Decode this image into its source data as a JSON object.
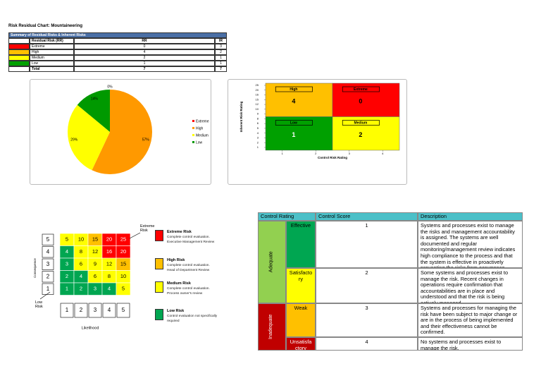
{
  "title": "Risk Residual Chart: Mountaineering",
  "summary_table": {
    "title": "Summary of Residual Risks & Inherent Risks",
    "columns": [
      "Residual Risk (RR)",
      "RR",
      "IR"
    ],
    "rows": [
      [
        "Extreme",
        0,
        3
      ],
      [
        "High",
        4,
        2
      ],
      [
        "Medium",
        2,
        1
      ],
      [
        "Low",
        1,
        1
      ],
      [
        "Total",
        7,
        7
      ]
    ],
    "colors": [
      "#ff0000",
      "#ffc000",
      "#ffff00",
      "#00a000"
    ]
  },
  "chart_data": [
    {
      "type": "pie",
      "categories": [
        "Extreme",
        "High",
        "Medium",
        "Low"
      ],
      "values": [
        0,
        57,
        29,
        14
      ],
      "value_labels": [
        "0%",
        "57%",
        "29%",
        "14%"
      ],
      "colors": [
        "#ff0000",
        "#ff9900",
        "#ffff00",
        "#009900"
      ],
      "legend": "right"
    },
    {
      "type": "quadrant",
      "xlabel": "Control Risk Rating",
      "ylabel": "Inherent Risk Rating",
      "xlim": [
        0.5,
        4.5
      ],
      "xticks": [
        1,
        2,
        3,
        4
      ],
      "yticks": [
        25,
        20,
        16,
        15,
        12,
        10,
        9,
        8,
        6,
        5,
        4,
        3,
        2,
        1
      ],
      "quadrants": [
        {
          "label": "High",
          "count": 4,
          "color": "#ffc000"
        },
        {
          "label": "Extreme",
          "count": 0,
          "color": "#ff0000"
        },
        {
          "label": "Low",
          "count": 1,
          "color": "#00a000"
        },
        {
          "label": "Medium",
          "count": 2,
          "color": "#ffff00"
        }
      ]
    }
  ],
  "risk_matrix": {
    "row_labels": [
      5,
      4,
      3,
      2,
      1
    ],
    "col_labels": [
      1,
      2,
      3,
      4,
      5
    ],
    "rows": [
      [
        5,
        10,
        15,
        20,
        25
      ],
      [
        4,
        8,
        12,
        16,
        20
      ],
      [
        3,
        6,
        9,
        12,
        15
      ],
      [
        2,
        4,
        6,
        8,
        10
      ],
      [
        1,
        2,
        3,
        4,
        5
      ]
    ],
    "colors": [
      [
        "#ffff00",
        "#ffff00",
        "#ffc000",
        "#ff0000",
        "#ff0000"
      ],
      [
        "#00a651",
        "#ffff00",
        "#ffff00",
        "#ff0000",
        "#ff0000"
      ],
      [
        "#00a651",
        "#ffff00",
        "#ffff00",
        "#ffff00",
        "#ffc000"
      ],
      [
        "#00a651",
        "#00a651",
        "#ffff00",
        "#ffff00",
        "#ffff00"
      ],
      [
        "#00a651",
        "#00a651",
        "#00a651",
        "#00a651",
        "#ffff00"
      ]
    ],
    "xlabel": "Likelihood",
    "ylabel": "Consequence",
    "annotations": [
      "Extreme Risk",
      "Low Risk"
    ],
    "legend": [
      {
        "title": "Extreme Risk",
        "lines": [
          "Complete control evaluation.",
          "Executive Management Review"
        ],
        "color": "#ff0000"
      },
      {
        "title": "High Risk",
        "lines": [
          "Complete control evaluation.",
          "Head of Department Review"
        ],
        "color": "#ffc000"
      },
      {
        "title": "Medium Risk",
        "lines": [
          "Complete control evaluation.",
          "Process owner's review"
        ],
        "color": "#ffff00"
      },
      {
        "title": "Low Risk",
        "lines": [
          "Control evaluation not specifically",
          "required"
        ],
        "color": "#00a651"
      }
    ]
  },
  "control_table": {
    "columns": [
      "Control Rating",
      "Control Score",
      "Description"
    ],
    "groups": [
      {
        "label": "Adequate",
        "color": "#92d050"
      },
      {
        "label": "Inadequate",
        "color": "#c00000"
      }
    ],
    "rows": [
      {
        "rating": "Effective",
        "score": 1,
        "color": "#00a651",
        "description": "Systems and processes exist to manage the risks and management accountability is assigned. The systems are well documented and regular monitoring/management review indicates high compliance to the process and that the system is effective in proactively preventing the risks from occurrence."
      },
      {
        "rating": "Satisfactory",
        "score": 2,
        "color": "#ffff00",
        "description": "Some systems and processes exist to manage the risk. Recent changes in operations require confirmation that accountabilities are in place and understood and that the risk is being actively managed."
      },
      {
        "rating": "Weak",
        "score": 3,
        "color": "#ffc000",
        "description": "Systems and processes for managing the risk have been subject to major change or are in the process of being implemented and their effectiveness cannot be confirmed."
      },
      {
        "rating": "Unsatisfactory",
        "score": 4,
        "color": "#c00000",
        "description": "No systems and processes exist to manage the risk."
      }
    ]
  }
}
